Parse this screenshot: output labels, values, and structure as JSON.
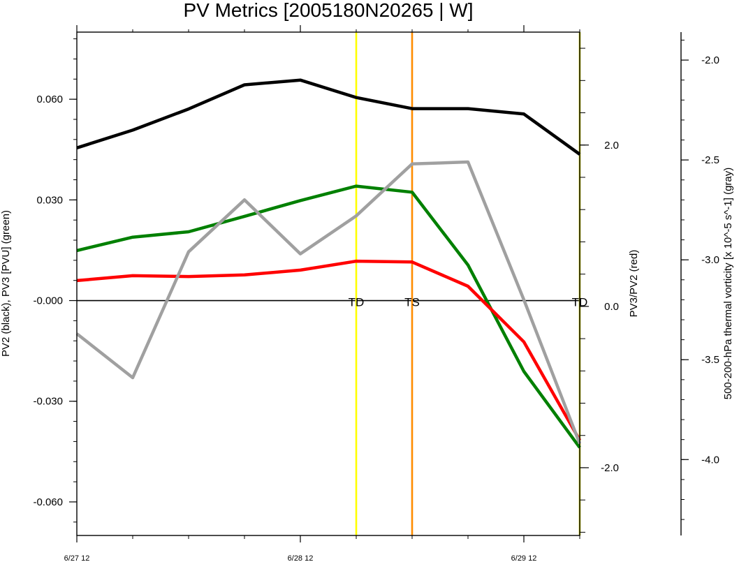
{
  "chart_data": {
    "type": "line",
    "title": "PV Metrics [2005180N20265 | W]",
    "xlabel": "",
    "x_ticks": [
      {
        "label": "6/27 12",
        "index": 0
      },
      {
        "label": "6/28 12",
        "index": 4
      },
      {
        "label": "6/29 12",
        "index": 8
      }
    ],
    "x": [
      0,
      1,
      2,
      3,
      4,
      5,
      6,
      7,
      8,
      9
    ],
    "left_axis": {
      "label": "PV2 (black), PV3 [PVU] (green)",
      "ylim": [
        -0.07,
        0.08
      ],
      "ticks": [
        {
          "v": 0.06,
          "label": "0.060"
        },
        {
          "v": 0.03,
          "label": "0.030"
        },
        {
          "v": 0.0,
          "label": "-0.000"
        },
        {
          "v": -0.03,
          "label": "-0.030"
        },
        {
          "v": -0.06,
          "label": "-0.060"
        }
      ]
    },
    "mid_axis": {
      "label": "PV3/PV2 (red)",
      "ylim": [
        -2.84,
        3.4
      ],
      "ticks": [
        {
          "v": 2.0,
          "label": "2.0"
        },
        {
          "v": 0.0,
          "label": "0.0"
        },
        {
          "v": -2.0,
          "label": "-2.0"
        }
      ]
    },
    "right_axis": {
      "label": "500-200-hPa thermal vorticity [x 10^-5 s^-1] (gray)",
      "ylim": [
        -4.38,
        -1.86
      ],
      "ticks": [
        {
          "v": -2.0,
          "label": "-2.0"
        },
        {
          "v": -2.5,
          "label": "-2.5"
        },
        {
          "v": -3.0,
          "label": "-3.0"
        },
        {
          "v": -3.5,
          "label": "-3.5"
        },
        {
          "v": -4.0,
          "label": "-4.0"
        }
      ]
    },
    "series": [
      {
        "name": "PV2 (black)",
        "axis": "left",
        "color": "#000000",
        "values": [
          0.0455,
          0.0508,
          0.0571,
          0.0643,
          0.0657,
          0.0605,
          0.0572,
          0.0572,
          0.0556,
          0.0436
        ]
      },
      {
        "name": "PV3 (green)",
        "axis": "left",
        "color": "#008000",
        "values": [
          0.0149,
          0.0189,
          0.0205,
          0.0251,
          0.0298,
          0.0341,
          0.0323,
          0.0106,
          -0.0211,
          -0.0438
        ]
      },
      {
        "name": "PV3/PV2 (red)",
        "axis": "mid",
        "color": "#ff0000",
        "values": [
          0.32,
          0.38,
          0.37,
          0.39,
          0.45,
          0.56,
          0.55,
          0.25,
          -0.44,
          -1.66
        ]
      },
      {
        "name": "thermal vorticity (gray)",
        "axis": "right",
        "color": "#a0a0a0",
        "values": [
          -3.37,
          -3.59,
          -2.96,
          -2.7,
          -2.97,
          -2.78,
          -2.52,
          -2.51,
          -3.2,
          -3.92
        ]
      }
    ],
    "zero_line": 0.0,
    "stage_markers": [
      {
        "label": "TD",
        "index": 5,
        "color": "#ffff00"
      },
      {
        "label": "TS",
        "index": 6,
        "color": "#ff8c00"
      },
      {
        "label": "TD",
        "index": 9,
        "color": "#cccc00"
      }
    ],
    "grid": false,
    "legend": "none"
  }
}
